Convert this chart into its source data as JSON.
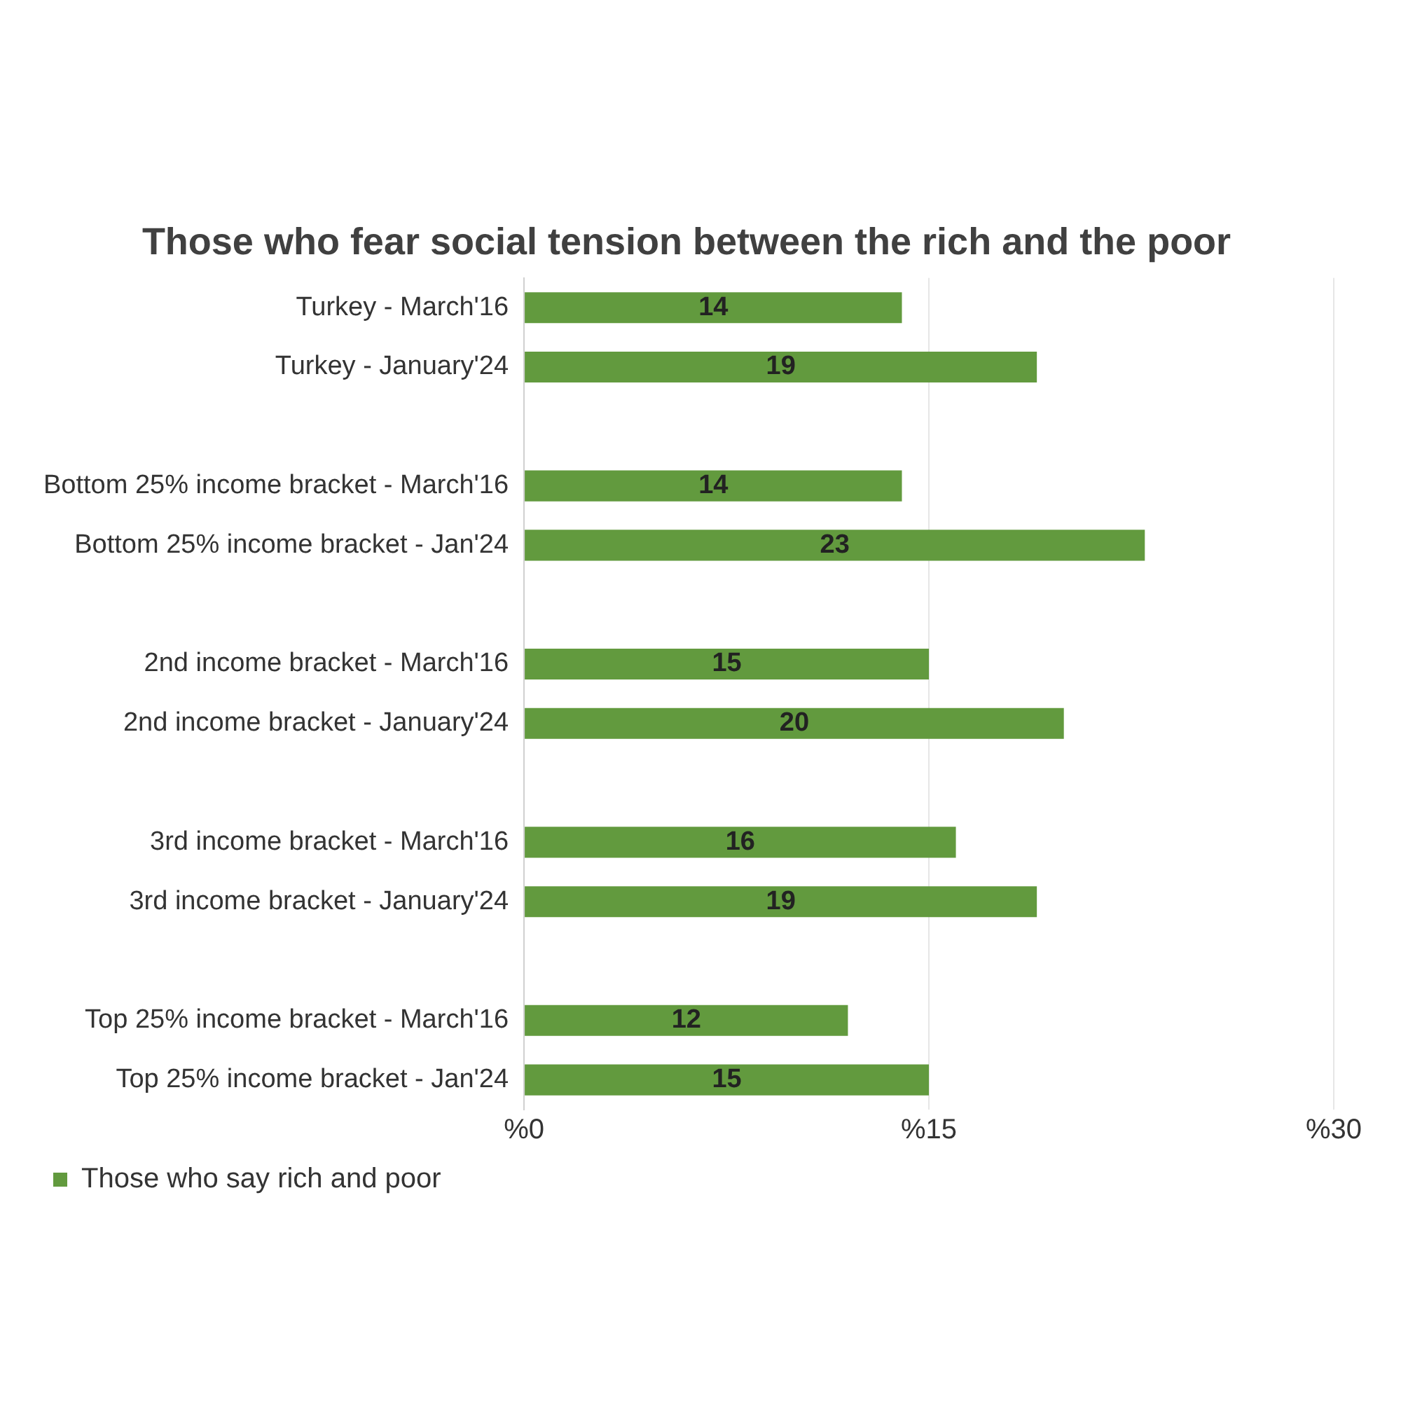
{
  "chart_data": {
    "type": "bar",
    "orientation": "horizontal",
    "title": "Those who fear social tension between the rich and the poor",
    "categories": [
      "Turkey - March'16",
      "Turkey - January'24",
      null,
      "Bottom 25% income bracket - March'16",
      "Bottom 25% income bracket - Jan'24",
      null,
      "2nd income bracket - March'16",
      "2nd income bracket - January'24",
      null,
      "3rd income bracket - March'16",
      "3rd income bracket - January'24",
      null,
      "Top 25% income bracket - March'16",
      "Top 25% income bracket - Jan'24"
    ],
    "series": [
      {
        "name": "Those who say rich and poor",
        "color": "#629a3e",
        "values": [
          14,
          19,
          null,
          14,
          23,
          null,
          15,
          20,
          null,
          16,
          19,
          null,
          12,
          15
        ]
      }
    ],
    "xlim": [
      0,
      30
    ],
    "xticks": [
      {
        "value": 0,
        "label": "%0"
      },
      {
        "value": 15,
        "label": "%15"
      },
      {
        "value": 30,
        "label": "%30"
      }
    ],
    "grid": "x",
    "legend": "bottom",
    "data_labels": true
  }
}
